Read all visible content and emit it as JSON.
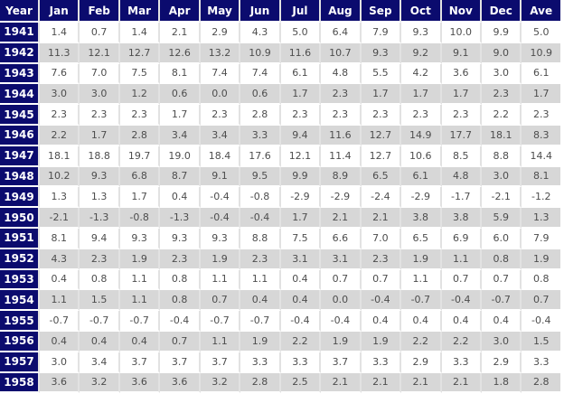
{
  "accent_colors": {
    "header_navy": "#0b0b6e",
    "alt_row_gray": "#d7d7d7",
    "data_text": "#4d4d4d",
    "grid_separator": "#e2e2e2"
  },
  "chart_data": {
    "type": "table",
    "columns": [
      "Year",
      "Jan",
      "Feb",
      "Mar",
      "Apr",
      "May",
      "Jun",
      "Jul",
      "Aug",
      "Sep",
      "Oct",
      "Nov",
      "Dec",
      "Ave"
    ],
    "rows": [
      {
        "year": "1941",
        "values": [
          1.4,
          0.7,
          1.4,
          2.1,
          2.9,
          4.3,
          5.0,
          6.4,
          7.9,
          9.3,
          10.0,
          9.9,
          5.0
        ]
      },
      {
        "year": "1942",
        "values": [
          11.3,
          12.1,
          12.7,
          12.6,
          13.2,
          10.9,
          11.6,
          10.7,
          9.3,
          9.2,
          9.1,
          9.0,
          10.9
        ]
      },
      {
        "year": "1943",
        "values": [
          7.6,
          7.0,
          7.5,
          8.1,
          7.4,
          7.4,
          6.1,
          4.8,
          5.5,
          4.2,
          3.6,
          3.0,
          6.1
        ]
      },
      {
        "year": "1944",
        "values": [
          3.0,
          3.0,
          1.2,
          0.6,
          0.0,
          0.6,
          1.7,
          2.3,
          1.7,
          1.7,
          1.7,
          2.3,
          1.7
        ]
      },
      {
        "year": "1945",
        "values": [
          2.3,
          2.3,
          2.3,
          1.7,
          2.3,
          2.8,
          2.3,
          2.3,
          2.3,
          2.3,
          2.3,
          2.2,
          2.3
        ]
      },
      {
        "year": "1946",
        "values": [
          2.2,
          1.7,
          2.8,
          3.4,
          3.4,
          3.3,
          9.4,
          11.6,
          12.7,
          14.9,
          17.7,
          18.1,
          8.3
        ]
      },
      {
        "year": "1947",
        "values": [
          18.1,
          18.8,
          19.7,
          19.0,
          18.4,
          17.6,
          12.1,
          11.4,
          12.7,
          10.6,
          8.5,
          8.8,
          14.4
        ]
      },
      {
        "year": "1948",
        "values": [
          10.2,
          9.3,
          6.8,
          8.7,
          9.1,
          9.5,
          9.9,
          8.9,
          6.5,
          6.1,
          4.8,
          3.0,
          8.1
        ]
      },
      {
        "year": "1949",
        "values": [
          1.3,
          1.3,
          1.7,
          0.4,
          -0.4,
          -0.8,
          -2.9,
          -2.9,
          -2.4,
          -2.9,
          -1.7,
          -2.1,
          -1.2
        ]
      },
      {
        "year": "1950",
        "values": [
          -2.1,
          -1.3,
          -0.8,
          -1.3,
          -0.4,
          -0.4,
          1.7,
          2.1,
          2.1,
          3.8,
          3.8,
          5.9,
          1.3
        ]
      },
      {
        "year": "1951",
        "values": [
          8.1,
          9.4,
          9.3,
          9.3,
          9.3,
          8.8,
          7.5,
          6.6,
          7.0,
          6.5,
          6.9,
          6.0,
          7.9
        ]
      },
      {
        "year": "1952",
        "values": [
          4.3,
          2.3,
          1.9,
          2.3,
          1.9,
          2.3,
          3.1,
          3.1,
          2.3,
          1.9,
          1.1,
          0.8,
          1.9
        ]
      },
      {
        "year": "1953",
        "values": [
          0.4,
          0.8,
          1.1,
          0.8,
          1.1,
          1.1,
          0.4,
          0.7,
          0.7,
          1.1,
          0.7,
          0.7,
          0.8
        ]
      },
      {
        "year": "1954",
        "values": [
          1.1,
          1.5,
          1.1,
          0.8,
          0.7,
          0.4,
          0.4,
          0.0,
          -0.4,
          -0.7,
          -0.4,
          -0.7,
          0.7
        ]
      },
      {
        "year": "1955",
        "values": [
          -0.7,
          -0.7,
          -0.7,
          -0.4,
          -0.7,
          -0.7,
          -0.4,
          -0.4,
          0.4,
          0.4,
          0.4,
          0.4,
          -0.4
        ]
      },
      {
        "year": "1956",
        "values": [
          0.4,
          0.4,
          0.4,
          0.7,
          1.1,
          1.9,
          2.2,
          1.9,
          1.9,
          2.2,
          2.2,
          3.0,
          1.5
        ]
      },
      {
        "year": "1957",
        "values": [
          3.0,
          3.4,
          3.7,
          3.7,
          3.7,
          3.3,
          3.3,
          3.7,
          3.3,
          2.9,
          3.3,
          2.9,
          3.3
        ]
      },
      {
        "year": "1958",
        "values": [
          3.6,
          3.2,
          3.6,
          3.6,
          3.2,
          2.8,
          2.5,
          2.1,
          2.1,
          2.1,
          2.1,
          1.8,
          2.8
        ]
      }
    ],
    "title": "",
    "value_format": "one-decimal",
    "layout_hints": {
      "alternating_rows": true,
      "first_row_background": "white",
      "header_position": "top",
      "year_column_position": "left"
    }
  }
}
